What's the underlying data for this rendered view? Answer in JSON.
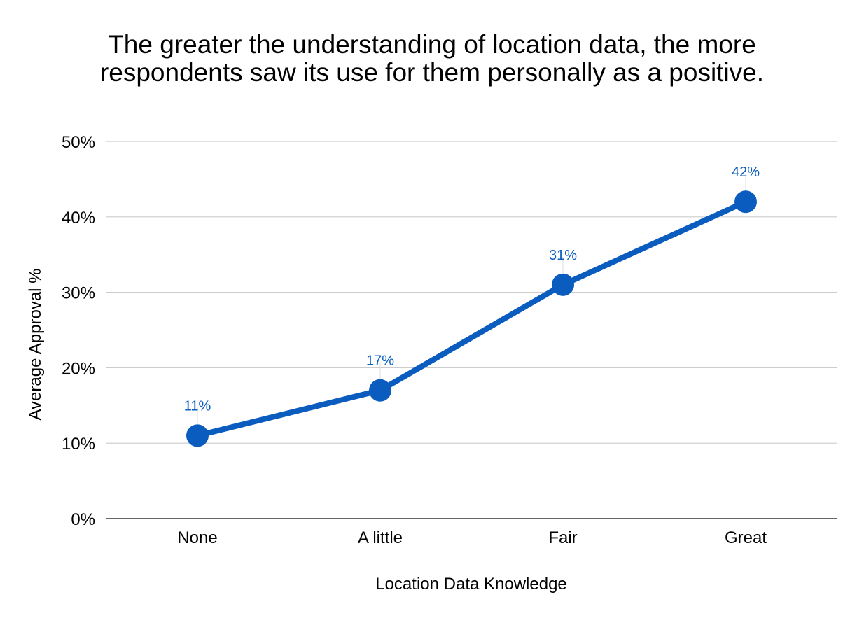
{
  "chart_data": {
    "type": "line",
    "title_lines": [
      "The greater the understanding of location data, the more",
      "respondents saw its use for them personally as a positive."
    ],
    "xlabel": "Location Data Knowledge",
    "ylabel": "Average Approval %",
    "categories": [
      "None",
      "A little",
      "Fair",
      "Great"
    ],
    "series": [
      {
        "values": [
          11,
          17,
          31,
          42
        ],
        "labels": [
          "11%",
          "17%",
          "31%",
          "42%"
        ]
      }
    ],
    "ylim": [
      0,
      50
    ],
    "yticks": [
      0,
      10,
      20,
      30,
      40,
      50
    ],
    "ytick_labels": [
      "0%",
      "10%",
      "20%",
      "30%",
      "40%",
      "50%"
    ],
    "grid": true,
    "legend": "none",
    "colors": {
      "line": "#0a5cbf",
      "label": "#0a5cbf",
      "grid": "#cccccc",
      "axis": "#333333"
    }
  }
}
